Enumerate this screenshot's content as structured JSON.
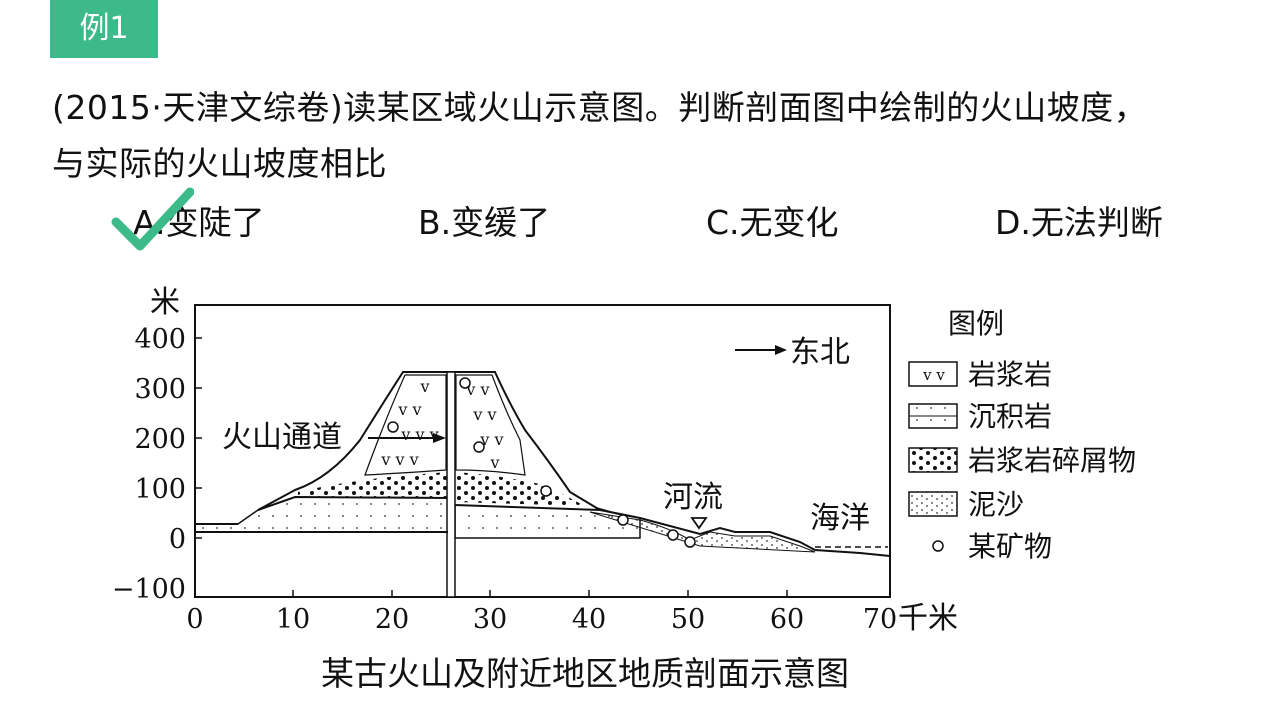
{
  "badge": "例1",
  "question": {
    "line1": "(2015·天津文综卷)读某区域火山示意图。判断剖面图中绘制的火山坡度，",
    "line2": "与实际的火山坡度相比"
  },
  "options": [
    {
      "label": "A.变陡了",
      "selected": true
    },
    {
      "label": "B.变缓了",
      "selected": false
    },
    {
      "label": "C.无变化",
      "selected": false
    },
    {
      "label": "D.无法判断",
      "selected": false
    }
  ],
  "colors": {
    "accent": "#3dba8a"
  },
  "figure": {
    "y_unit": "米",
    "y_ticks": [
      "400",
      "300",
      "200",
      "100",
      "0",
      "−100"
    ],
    "x_ticks": [
      "0",
      "10",
      "20",
      "30",
      "40",
      "50",
      "60",
      "70"
    ],
    "x_unit": "千米",
    "direction": "东北",
    "labels": {
      "vent": "火山通道",
      "river": "河流",
      "sea": "海洋"
    },
    "legend": {
      "title": "图例",
      "items": [
        {
          "icon": "magma-rock-pattern",
          "label": "岩浆岩"
        },
        {
          "icon": "sedimentary-rock-pattern",
          "label": "沉积岩"
        },
        {
          "icon": "magma-debris-pattern",
          "label": "岩浆岩碎屑物"
        },
        {
          "icon": "silt-pattern",
          "label": "泥沙"
        },
        {
          "icon": "mineral-circle",
          "label": "某矿物"
        }
      ]
    },
    "caption": "某古火山及附近地区地质剖面示意图"
  }
}
